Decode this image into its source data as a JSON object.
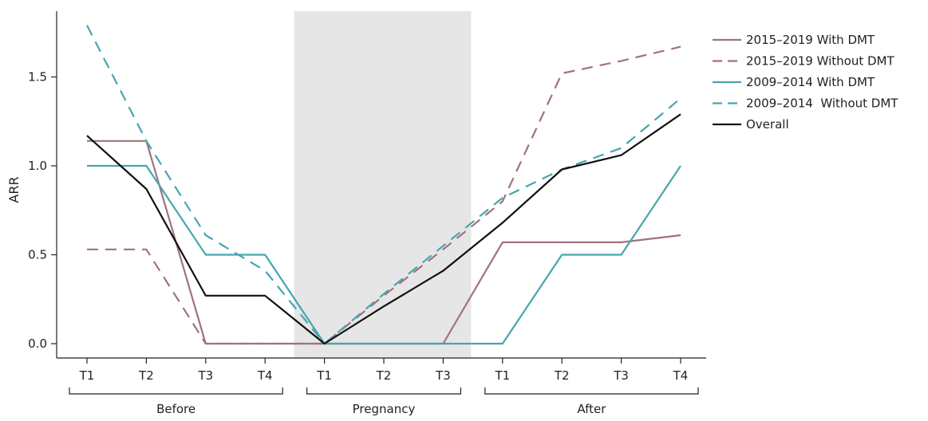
{
  "chart_data": {
    "type": "line",
    "ylabel": "ARR",
    "ylim": [
      0,
      1.8
    ],
    "yticks": [
      "0.0",
      "0.5",
      "1.0",
      "1.5"
    ],
    "yticks_values": [
      0,
      0.5,
      1.0,
      1.5
    ],
    "categories": [
      "T1",
      "T2",
      "T3",
      "T4",
      "T1",
      "T2",
      "T3",
      "T1",
      "T2",
      "T3",
      "T4"
    ],
    "groups": [
      {
        "label": "Before",
        "start": 0,
        "end": 3
      },
      {
        "label": "Pregnancy",
        "start": 4,
        "end": 6
      },
      {
        "label": "After",
        "start": 7,
        "end": 10
      }
    ],
    "shaded_range": {
      "start": 4,
      "end": 6,
      "color": "#e6e6e6"
    },
    "legend_position": "top-right",
    "grid": false,
    "series": [
      {
        "name": "2015–2019 With DMT",
        "color": "#a0727f",
        "dash": "solid",
        "values": [
          1.14,
          1.14,
          0.0,
          0.0,
          0.0,
          0.0,
          0.0,
          0.57,
          0.57,
          0.57,
          0.61
        ]
      },
      {
        "name": "2015–2019 Without DMT",
        "color": "#a0727f",
        "dash": "dashed",
        "values": [
          0.53,
          0.53,
          0.0,
          0.0,
          0.0,
          0.27,
          0.53,
          0.8,
          1.52,
          1.59,
          1.67
        ]
      },
      {
        "name": "2009–2014 With DMT",
        "color": "#45a6ad",
        "dash": "solid",
        "values": [
          1.0,
          1.0,
          0.5,
          0.5,
          0.0,
          0.0,
          0.0,
          0.0,
          0.5,
          0.5,
          1.0
        ]
      },
      {
        "name": "2009–2014  Without DMT",
        "color": "#45a6ad",
        "dash": "dashed",
        "values": [
          1.79,
          1.14,
          0.61,
          0.41,
          0.0,
          0.28,
          0.55,
          0.82,
          0.98,
          1.1,
          1.38
        ]
      },
      {
        "name": "Overall",
        "color": "#111111",
        "dash": "solid",
        "values": [
          1.17,
          0.87,
          0.27,
          0.27,
          0.0,
          0.21,
          0.41,
          0.68,
          0.98,
          1.06,
          1.29
        ]
      }
    ]
  }
}
